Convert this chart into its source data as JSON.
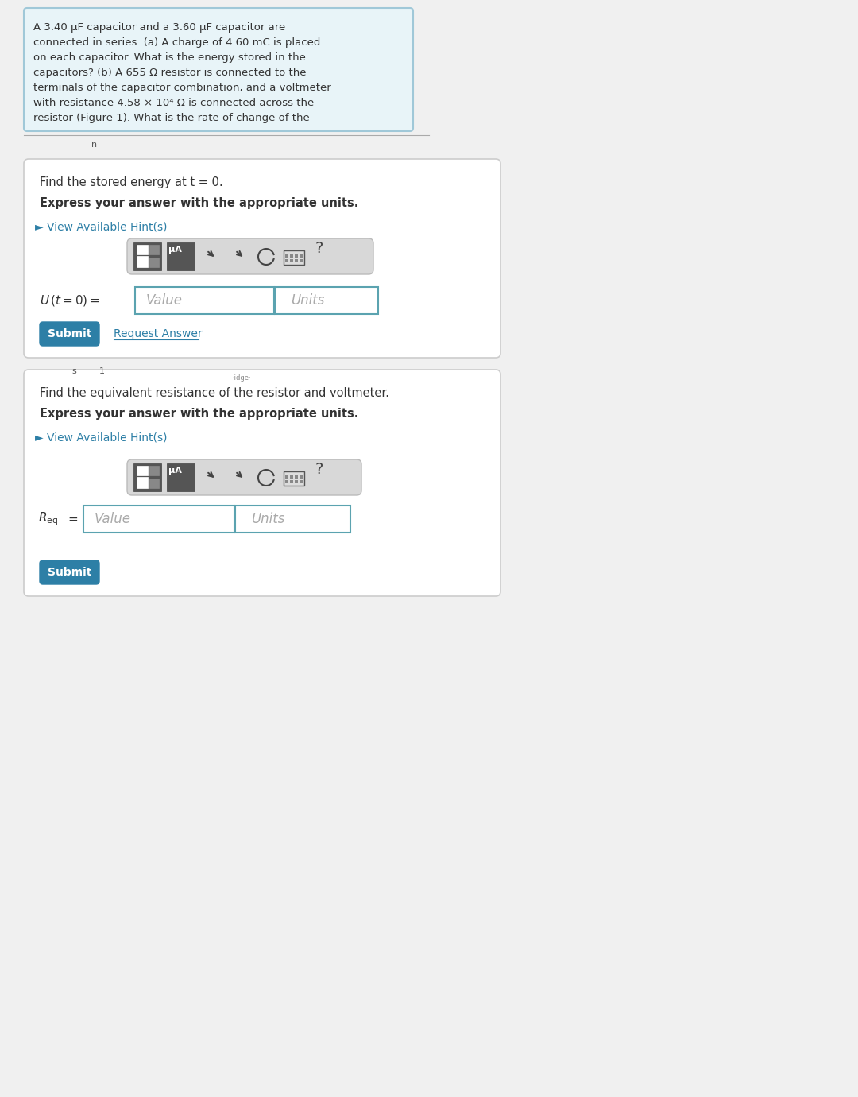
{
  "bg_color": "#f0f0f0",
  "white": "#ffffff",
  "light_blue_bg": "#e8f4f8",
  "border_color": "#cccccc",
  "teal_border": "#5ba3b0",
  "blue_btn": "#2d7fa6",
  "blue_link": "#2d7fa6",
  "dark_text": "#333333",
  "gray_text": "#666666",
  "section1_title": "Find the stored energy at t = 0.",
  "section1_bold": "Express your answer with the appropriate units.",
  "hint_text": "► View Available Hint(s)",
  "value_placeholder": "Value",
  "units_placeholder": "Units",
  "submit_text": "Submit",
  "request_answer_text": "Request Answer",
  "section2_title": "Find the equivalent resistance of the resistor and voltmeter.",
  "section2_bold": "Express your answer with the appropriate units.",
  "small_text_n": "n",
  "small_text_s": "s",
  "small_text_1": "1",
  "problem_lines": [
    "A 3.40 μF capacitor and a 3.60 μF capacitor are",
    "connected in series. (a) A charge of 4.60 mC is placed",
    "on each capacitor. What is the energy stored in the",
    "capacitors? (b) A 655 Ω resistor is connected to the",
    "terminals of the capacitor combination, and a voltmeter",
    "with resistance 4.58 × 10⁴ Ω is connected across the",
    "resistor (Figure 1). What is the rate of change of the"
  ]
}
